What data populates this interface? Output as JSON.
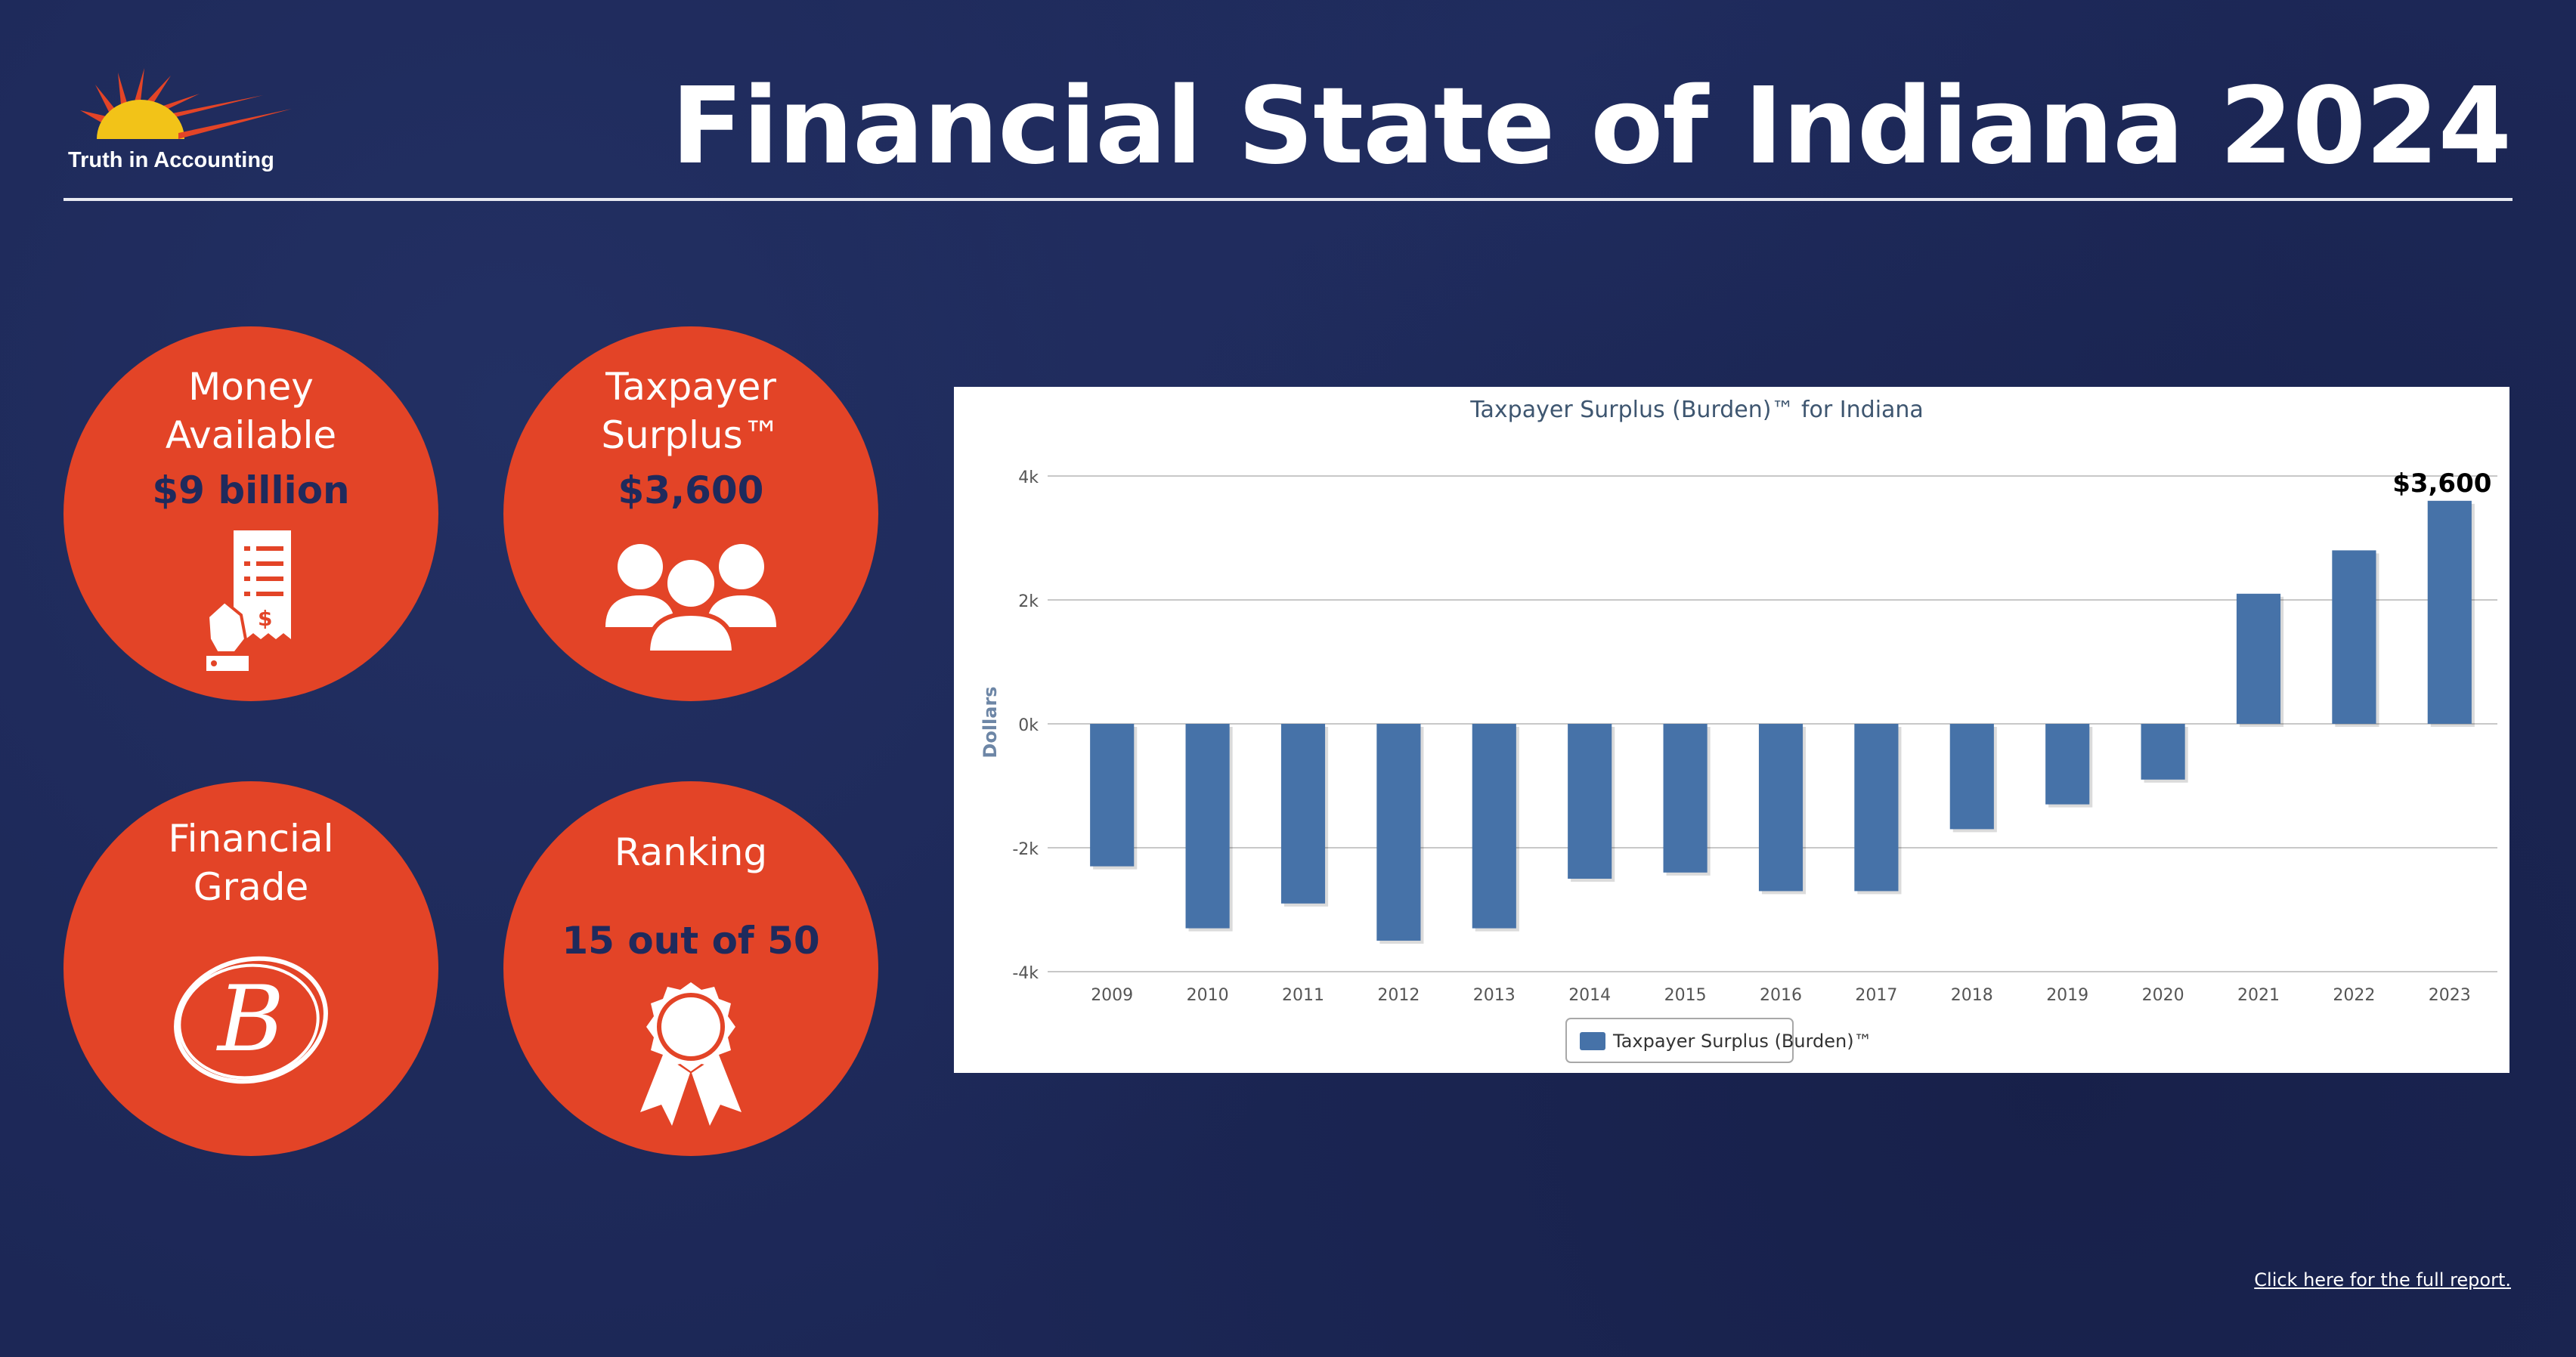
{
  "header": {
    "logo_text": "Truth in Accounting",
    "title": "Financial State of Indiana 2024"
  },
  "colors": {
    "background": "#1c2756",
    "circle": "#e34427",
    "value_text": "#1f2a5c",
    "bar": "#4672a8"
  },
  "stats": {
    "money": {
      "label_line1": "Money",
      "label_line2": "Available",
      "value": "$9 billion",
      "icon": "receipt-hand-icon"
    },
    "surplus": {
      "label_line1": "Taxpayer",
      "label_line2": "Surplus™",
      "value": "$3,600",
      "icon": "people-group-icon"
    },
    "grade": {
      "label_line1": "Financial",
      "label_line2": "Grade",
      "value": "B",
      "icon": "grade-circle-icon"
    },
    "ranking": {
      "label": "Ranking",
      "value": "15 out of 50",
      "icon": "award-ribbon-icon"
    }
  },
  "chart_data": {
    "type": "bar",
    "title": "Taxpayer Surplus (Burden)™ for Indiana",
    "xlabel": "",
    "ylabel": "Dollars",
    "ylim": [
      -4000,
      4000
    ],
    "yticks": [
      -4000,
      -2000,
      0,
      2000,
      4000
    ],
    "ytick_labels": [
      "-4k",
      "-2k",
      "0k",
      "2k",
      "4k"
    ],
    "grid": true,
    "legend_position": "bottom-center",
    "categories": [
      "2009",
      "2010",
      "2011",
      "2012",
      "2013",
      "2014",
      "2015",
      "2016",
      "2017",
      "2018",
      "2019",
      "2020",
      "2021",
      "2022",
      "2023"
    ],
    "series": [
      {
        "name": "Taxpayer Surplus (Burden)™",
        "values": [
          -2300,
          -3300,
          -2900,
          -3500,
          -3300,
          -2500,
          -2400,
          -2700,
          -2700,
          -1700,
          -1300,
          -900,
          2100,
          2800,
          3600
        ]
      }
    ],
    "annotations": [
      {
        "category": "2023",
        "text": "$3,600"
      }
    ]
  },
  "footer": {
    "link_text": "Click here for the full report."
  }
}
